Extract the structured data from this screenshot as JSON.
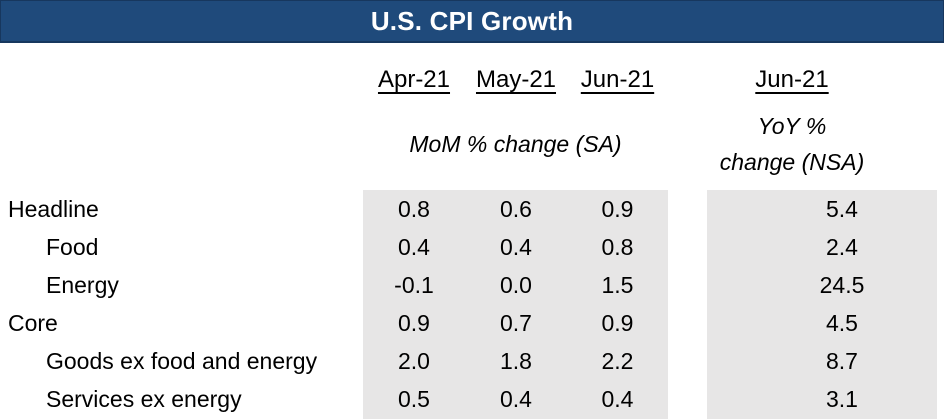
{
  "title": "U.S. CPI Growth",
  "headers": {
    "dates": [
      "Apr-21",
      "May-21",
      "Jun-21",
      "Jun-21"
    ],
    "mom_group": "MoM % change (SA)",
    "yoy_group_line1": "YoY %",
    "yoy_group_line2": "change (NSA)"
  },
  "table": {
    "rows": [
      {
        "label": "Headline",
        "values": [
          "0.8",
          "0.6",
          "0.9",
          "5.4"
        ]
      },
      {
        "label": "Food",
        "values": [
          "0.4",
          "0.4",
          "0.8",
          "2.4"
        ]
      },
      {
        "label": "Energy",
        "values": [
          "-0.1",
          "0.0",
          "1.5",
          "24.5"
        ]
      },
      {
        "label": "Core",
        "values": [
          "0.9",
          "0.7",
          "0.9",
          "4.5"
        ]
      },
      {
        "label": "Goods ex food and energy",
        "values": [
          "2.0",
          "1.8",
          "2.2",
          "8.7"
        ]
      },
      {
        "label": "Services ex energy",
        "values": [
          "0.5",
          "0.4",
          "0.4",
          "3.1"
        ]
      }
    ]
  },
  "colors": {
    "header_bg": "#1F4A7B",
    "header_border": "#17375E",
    "header_text": "#FFFFFF",
    "stripe_bg": "#E7E6E6",
    "text": "#000000"
  },
  "chart_data": {
    "type": "table",
    "title": "U.S. CPI Growth",
    "columns": [
      "Apr-21",
      "May-21",
      "Jun-21",
      "Jun-21"
    ],
    "column_groups": [
      {
        "label": "MoM % change (SA)",
        "columns": [
          "Apr-21",
          "May-21",
          "Jun-21"
        ]
      },
      {
        "label": "YoY % change (NSA)",
        "columns": [
          "Jun-21"
        ]
      }
    ],
    "rows": [
      {
        "label": "Headline",
        "indent": 0,
        "mom_sa": [
          0.8,
          0.6,
          0.9
        ],
        "yoy_nsa": 5.4
      },
      {
        "label": "Food",
        "indent": 1,
        "mom_sa": [
          0.4,
          0.4,
          0.8
        ],
        "yoy_nsa": 2.4
      },
      {
        "label": "Energy",
        "indent": 1,
        "mom_sa": [
          -0.1,
          0.0,
          1.5
        ],
        "yoy_nsa": 24.5
      },
      {
        "label": "Core",
        "indent": 0,
        "mom_sa": [
          0.9,
          0.7,
          0.9
        ],
        "yoy_nsa": 4.5
      },
      {
        "label": "Goods ex food and energy",
        "indent": 1,
        "mom_sa": [
          2.0,
          1.8,
          2.2
        ],
        "yoy_nsa": 8.7
      },
      {
        "label": "Services ex energy",
        "indent": 1,
        "mom_sa": [
          0.5,
          0.4,
          0.4
        ],
        "yoy_nsa": 3.1
      }
    ]
  }
}
